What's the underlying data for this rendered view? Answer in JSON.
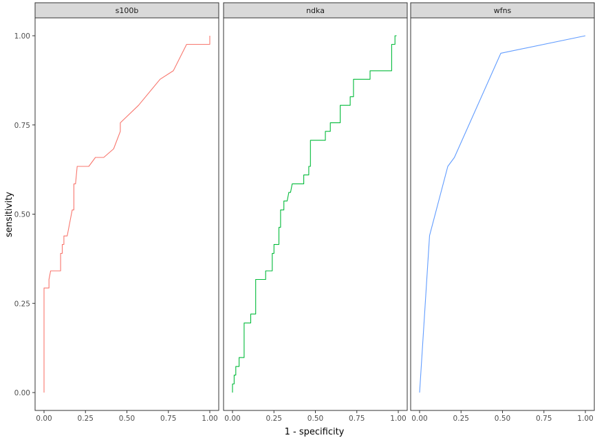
{
  "chart_data": {
    "type": "line",
    "xlabel": "1 - specificity",
    "ylabel": "sensitivity",
    "xlim": [
      0,
      1
    ],
    "ylim": [
      0,
      1
    ],
    "grid": false,
    "x_ticks": [
      0,
      0.25,
      0.5,
      0.75,
      1
    ],
    "x_tick_labels": [
      "0.00",
      "0.25",
      "0.50",
      "0.75",
      "1.00"
    ],
    "y_ticks": [
      0,
      0.25,
      0.5,
      0.75,
      1
    ],
    "y_tick_labels": [
      "0.00",
      "0.25",
      "0.50",
      "0.75",
      "1.00"
    ],
    "panels": [
      {
        "label": "s100b",
        "color": "#F8766D",
        "points": [
          [
            0,
            0
          ],
          [
            0,
            0.293
          ],
          [
            0.03,
            0.293
          ],
          [
            0.03,
            0.317
          ],
          [
            0.04,
            0.341
          ],
          [
            0.1,
            0.341
          ],
          [
            0.1,
            0.39
          ],
          [
            0.11,
            0.39
          ],
          [
            0.11,
            0.415
          ],
          [
            0.12,
            0.415
          ],
          [
            0.12,
            0.439
          ],
          [
            0.14,
            0.439
          ],
          [
            0.16,
            0.488
          ],
          [
            0.17,
            0.512
          ],
          [
            0.18,
            0.512
          ],
          [
            0.18,
            0.585
          ],
          [
            0.19,
            0.585
          ],
          [
            0.2,
            0.634
          ],
          [
            0.27,
            0.634
          ],
          [
            0.31,
            0.659
          ],
          [
            0.36,
            0.659
          ],
          [
            0.42,
            0.683
          ],
          [
            0.46,
            0.732
          ],
          [
            0.46,
            0.756
          ],
          [
            0.57,
            0.805
          ],
          [
            0.7,
            0.878
          ],
          [
            0.78,
            0.902
          ],
          [
            0.86,
            0.976
          ],
          [
            1,
            0.976
          ],
          [
            1,
            1
          ]
        ]
      },
      {
        "label": "ndka",
        "color": "#00BA38",
        "points": [
          [
            0,
            0
          ],
          [
            0,
            0.024
          ],
          [
            0.01,
            0.024
          ],
          [
            0.01,
            0.049
          ],
          [
            0.02,
            0.049
          ],
          [
            0.02,
            0.073
          ],
          [
            0.04,
            0.073
          ],
          [
            0.04,
            0.098
          ],
          [
            0.07,
            0.098
          ],
          [
            0.07,
            0.195
          ],
          [
            0.11,
            0.195
          ],
          [
            0.11,
            0.22
          ],
          [
            0.14,
            0.22
          ],
          [
            0.14,
            0.317
          ],
          [
            0.2,
            0.317
          ],
          [
            0.2,
            0.341
          ],
          [
            0.24,
            0.341
          ],
          [
            0.24,
            0.39
          ],
          [
            0.25,
            0.39
          ],
          [
            0.25,
            0.415
          ],
          [
            0.28,
            0.415
          ],
          [
            0.28,
            0.463
          ],
          [
            0.29,
            0.463
          ],
          [
            0.29,
            0.512
          ],
          [
            0.31,
            0.512
          ],
          [
            0.31,
            0.537
          ],
          [
            0.33,
            0.537
          ],
          [
            0.34,
            0.561
          ],
          [
            0.35,
            0.561
          ],
          [
            0.36,
            0.585
          ],
          [
            0.43,
            0.585
          ],
          [
            0.43,
            0.61
          ],
          [
            0.46,
            0.61
          ],
          [
            0.46,
            0.634
          ],
          [
            0.47,
            0.634
          ],
          [
            0.47,
            0.707
          ],
          [
            0.56,
            0.707
          ],
          [
            0.56,
            0.732
          ],
          [
            0.59,
            0.732
          ],
          [
            0.59,
            0.756
          ],
          [
            0.65,
            0.756
          ],
          [
            0.65,
            0.805
          ],
          [
            0.71,
            0.805
          ],
          [
            0.71,
            0.829
          ],
          [
            0.73,
            0.829
          ],
          [
            0.73,
            0.878
          ],
          [
            0.83,
            0.878
          ],
          [
            0.83,
            0.902
          ],
          [
            0.96,
            0.902
          ],
          [
            0.96,
            0.976
          ],
          [
            0.98,
            0.976
          ],
          [
            0.98,
            1
          ],
          [
            0.99,
            1
          ]
        ]
      },
      {
        "label": "wfns",
        "color": "#619CFF",
        "points": [
          [
            0,
            0
          ],
          [
            0.06,
            0.44
          ],
          [
            0.17,
            0.634
          ],
          [
            0.21,
            0.659
          ],
          [
            0.49,
            0.951
          ],
          [
            1,
            1
          ]
        ]
      }
    ]
  }
}
